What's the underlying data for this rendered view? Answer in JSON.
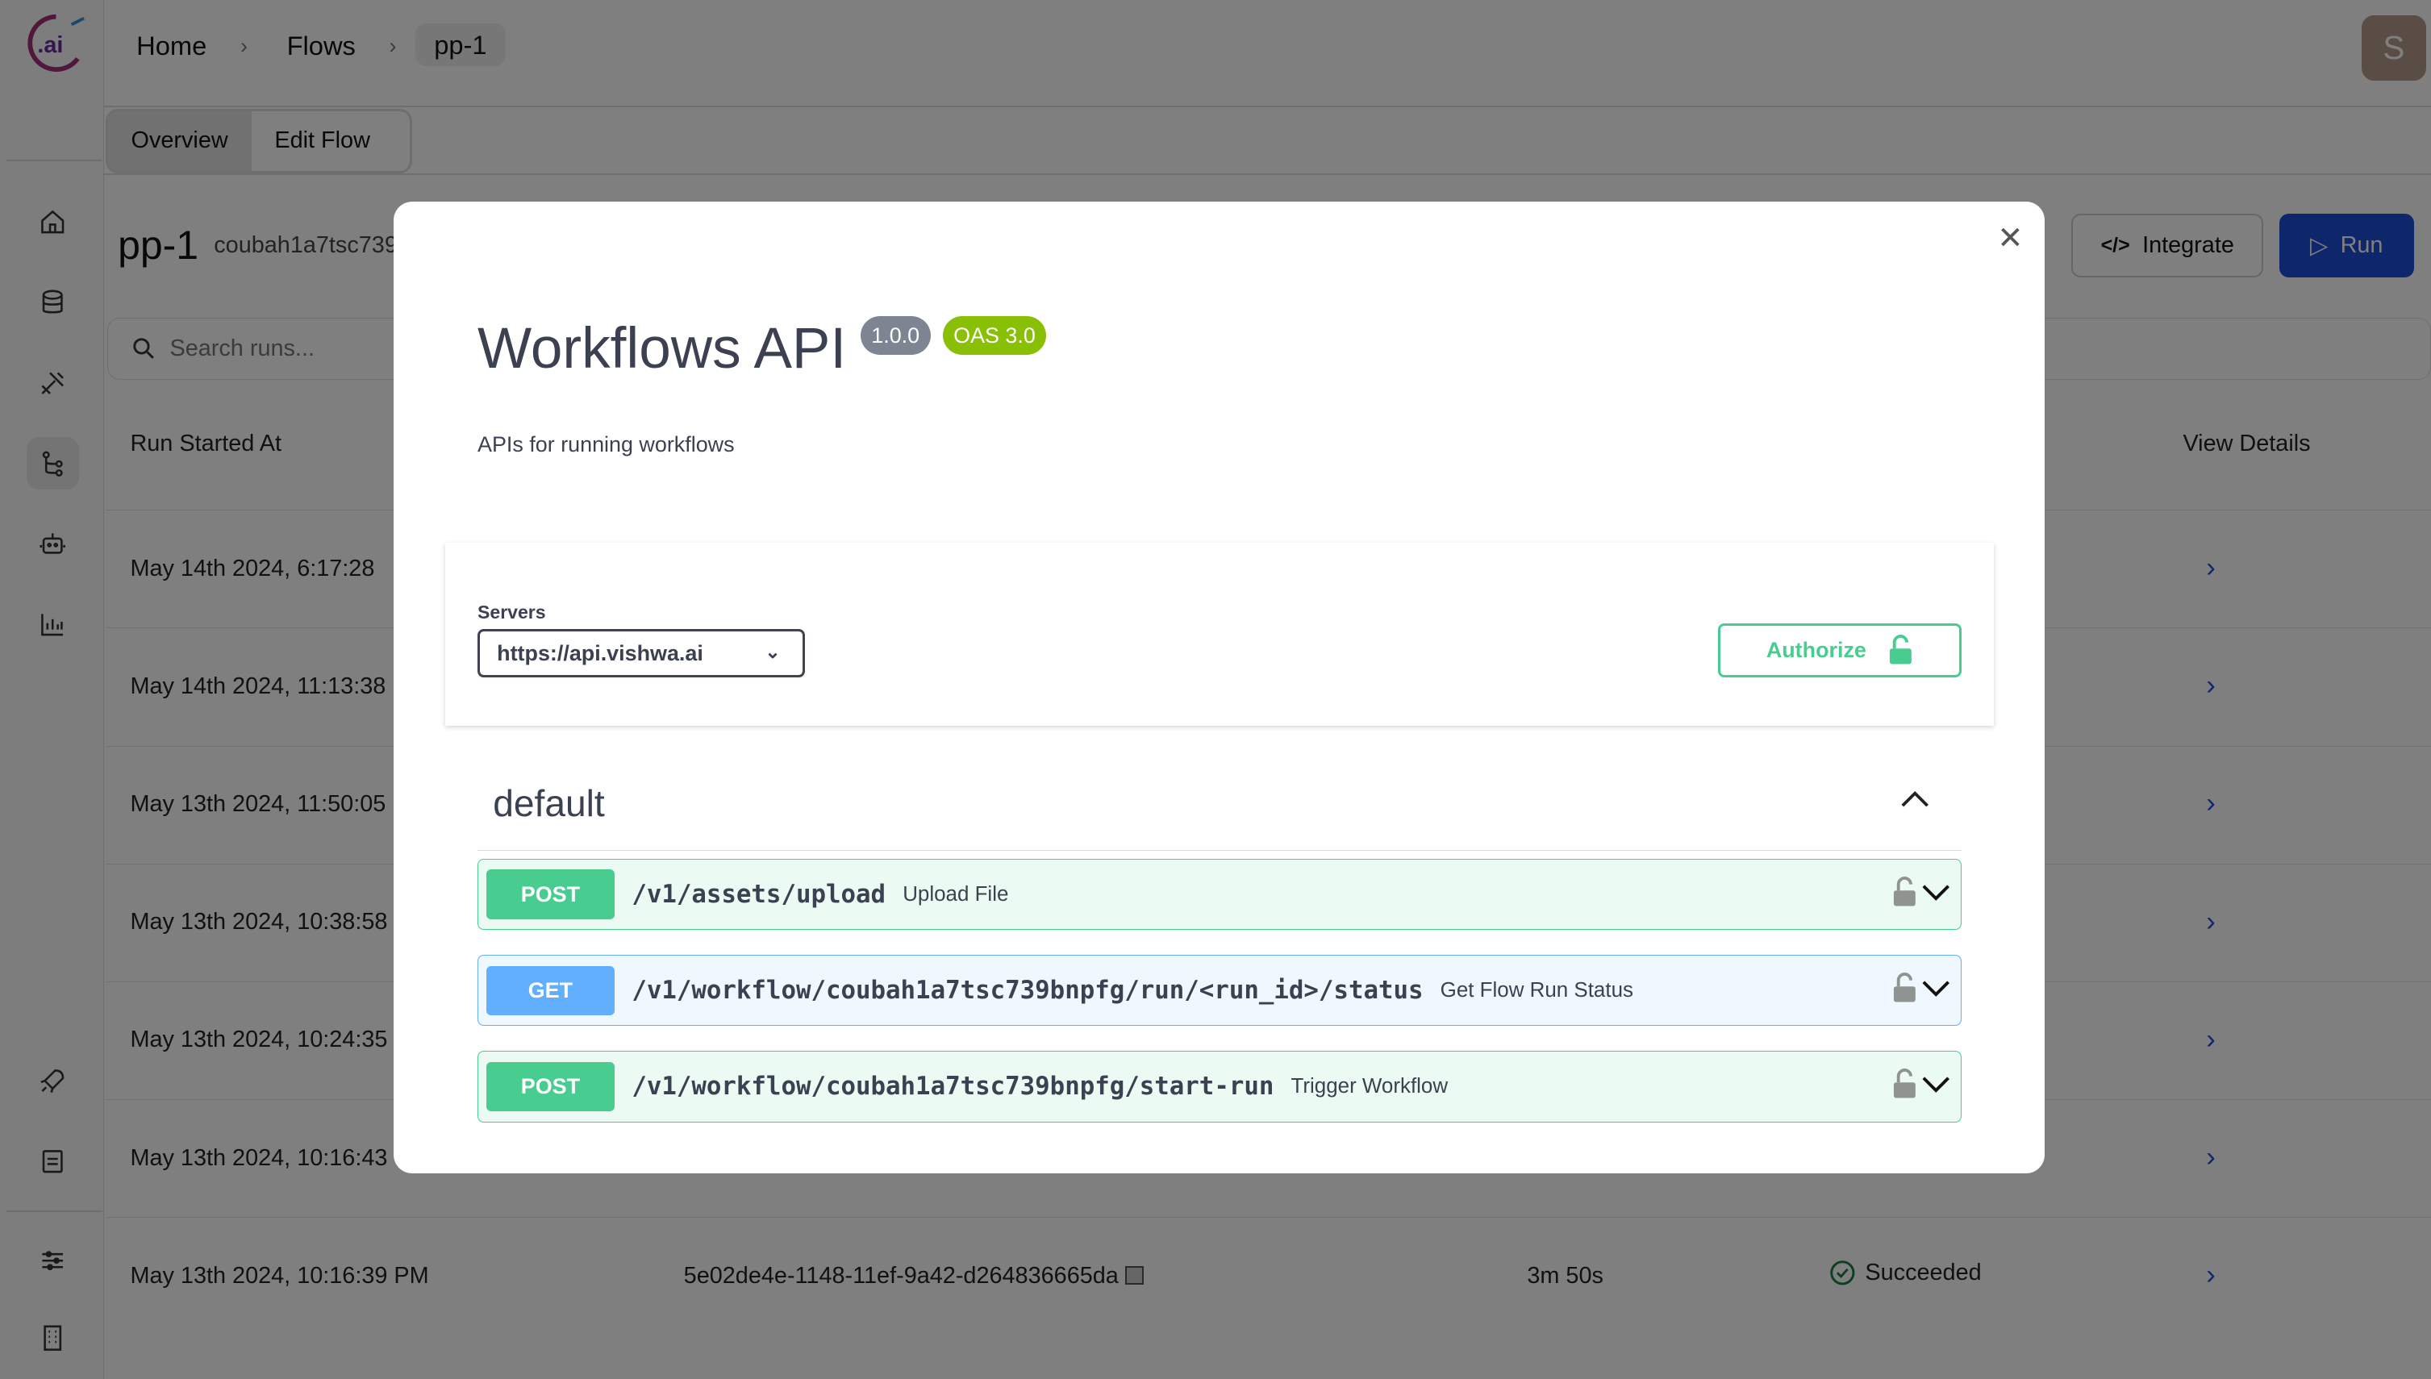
{
  "brand": {
    "logo_text": ".ai"
  },
  "sidebar": {
    "items": [
      {
        "icon": "home-icon"
      },
      {
        "icon": "database-icon"
      },
      {
        "icon": "tools-icon"
      },
      {
        "icon": "flow-icon",
        "active": true
      },
      {
        "icon": "bot-icon"
      },
      {
        "icon": "chart-icon"
      },
      {
        "icon": "rocket-icon"
      },
      {
        "icon": "document-icon"
      },
      {
        "icon": "sliders-icon"
      },
      {
        "icon": "building-icon"
      }
    ]
  },
  "breadcrumb": [
    "Home",
    "Flows",
    "pp-1"
  ],
  "user": {
    "avatar_initial": "S"
  },
  "tabs": [
    "Overview",
    "Edit Flow"
  ],
  "flow": {
    "name": "pp-1",
    "id": "coubah1a7tsc739"
  },
  "actions": {
    "integrate": "Integrate",
    "run": "Run"
  },
  "search": {
    "placeholder": "Search runs..."
  },
  "table": {
    "headers": {
      "started": "Run Started At",
      "details": "View Details"
    },
    "rows": [
      {
        "started": "May 14th 2024, 6:17:28"
      },
      {
        "started": "May 14th 2024, 11:13:38"
      },
      {
        "started": "May 13th 2024, 11:50:05"
      },
      {
        "started": "May 13th 2024, 10:38:58"
      },
      {
        "started": "May 13th 2024, 10:24:35"
      },
      {
        "started": "May 13th 2024, 10:16:43"
      },
      {
        "started": "May 13th 2024, 10:16:39 PM",
        "run_id": "5e02de4e-1148-11ef-9a42-d264836665da",
        "duration": "3m 50s",
        "status": "Succeeded"
      }
    ]
  },
  "modal": {
    "title": "Workflows API",
    "version": "1.0.0",
    "oas": "OAS 3.0",
    "description": "APIs for running workflows",
    "servers_label": "Servers",
    "server_selected": "https://api.vishwa.ai",
    "authorize": "Authorize",
    "tag": "default",
    "operations": [
      {
        "method": "POST",
        "path": "/v1/assets/upload",
        "summary": "Upload File"
      },
      {
        "method": "GET",
        "path": "/v1/workflow/coubah1a7tsc739bnpfg/run/<run_id>/status",
        "summary": "Get Flow Run Status"
      },
      {
        "method": "POST",
        "path": "/v1/workflow/coubah1a7tsc739bnpfg/start-run",
        "summary": "Trigger Workflow"
      }
    ]
  },
  "colors": {
    "post": "#49cc90",
    "get": "#61affe",
    "primary": "#1d4ed8",
    "version_badge": "#7d8492",
    "oas_badge": "#89bf04",
    "success": "#15803d"
  }
}
